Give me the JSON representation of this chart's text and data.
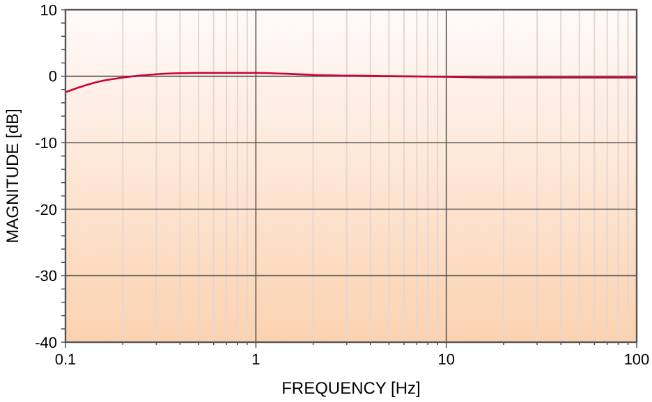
{
  "chart_data": {
    "type": "line",
    "xlabel": "FREQUENCY [Hz]",
    "ylabel": "MAGNITUDE [dB]",
    "log": "x",
    "grid": true,
    "xlim": [
      0.1,
      100
    ],
    "ylim": [
      -40,
      10
    ],
    "xticks": [
      0.1,
      {
        "value": 0.2,
        "label": null
      },
      {
        "value": 0.3,
        "label": null
      },
      {
        "value": 0.4,
        "label": null
      },
      {
        "value": 0.5,
        "label": null
      },
      {
        "value": 0.6,
        "label": null
      },
      {
        "value": 0.7,
        "label": null
      },
      {
        "value": 0.8,
        "label": null
      },
      {
        "value": 0.9,
        "label": null
      },
      1,
      {
        "value": 2,
        "label": null
      },
      {
        "value": 3,
        "label": null
      },
      {
        "value": 4,
        "label": null
      },
      {
        "value": 5,
        "label": null
      },
      {
        "value": 6,
        "label": null
      },
      {
        "value": 7,
        "label": null
      },
      {
        "value": 8,
        "label": null
      },
      {
        "value": 9,
        "label": null
      },
      10,
      {
        "value": 20,
        "label": null
      },
      {
        "value": 30,
        "label": null
      },
      {
        "value": 40,
        "label": null
      },
      {
        "value": 50,
        "label": null
      },
      {
        "value": 60,
        "label": null
      },
      {
        "value": 70,
        "label": null
      },
      {
        "value": 80,
        "label": null
      },
      {
        "value": 90,
        "label": null
      },
      100
    ],
    "yticks": [
      -40,
      {
        "value": -38,
        "label": null
      },
      {
        "value": -36,
        "label": null
      },
      {
        "value": -34,
        "label": null
      },
      {
        "value": -32,
        "label": null
      },
      -30,
      {
        "value": -28,
        "label": null
      },
      {
        "value": -26,
        "label": null
      },
      {
        "value": -24,
        "label": null
      },
      {
        "value": -22,
        "label": null
      },
      -20,
      {
        "value": -18,
        "label": null
      },
      {
        "value": -16,
        "label": null
      },
      {
        "value": -14,
        "label": null
      },
      {
        "value": -12,
        "label": null
      },
      -10,
      {
        "value": -8,
        "label": null
      },
      {
        "value": -6,
        "label": null
      },
      {
        "value": -4,
        "label": null
      },
      {
        "value": -2,
        "label": null
      },
      0,
      {
        "value": 2,
        "label": null
      },
      {
        "value": 4,
        "label": null
      },
      {
        "value": 6,
        "label": null
      },
      {
        "value": 8,
        "label": null
      },
      10
    ],
    "series": [
      {
        "color": "#cc0033",
        "x": [
          0.1,
          0.12,
          0.15,
          0.2,
          0.3,
          0.5,
          1,
          2,
          5,
          10,
          20,
          100
        ],
        "values": [
          -2.4,
          -1.6,
          -0.8,
          -0.2,
          0.3,
          0.5,
          0.5,
          0.2,
          0.0,
          -0.1,
          -0.2,
          -0.2
        ]
      }
    ]
  }
}
